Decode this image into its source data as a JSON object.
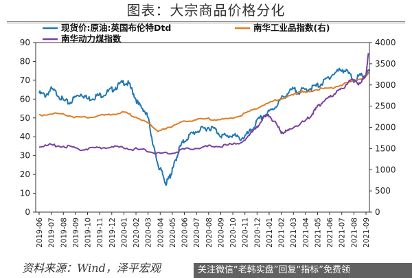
{
  "page": {
    "title": "图表：大宗商品价格分化",
    "source": "资料来源：Wind，泽平宏观",
    "watermark": "关注微信“老韩实盘”回复“指标”免费领"
  },
  "chart_data": {
    "type": "line",
    "xlabels": [
      "2019-06",
      "2019-07",
      "2019-08",
      "2019-09",
      "2019-10",
      "2019-11",
      "2019-12",
      "2020-01",
      "2020-02",
      "2020-03",
      "2020-04",
      "2020-05",
      "2020-06",
      "2020-07",
      "2020-08",
      "2020-09",
      "2020-10",
      "2020-11",
      "2020-12",
      "2021-01",
      "2021-02",
      "2021-03",
      "2021-04",
      "2021-05",
      "2021-06",
      "2021-07",
      "2021-08",
      "2021-09"
    ],
    "left_axis": {
      "min": 0,
      "max": 90,
      "ticks": [
        0,
        10,
        20,
        30,
        40,
        50,
        60,
        70,
        80,
        90
      ]
    },
    "right_axis": {
      "min": 0,
      "max": 4000,
      "ticks": [
        0,
        500,
        1000,
        1500,
        2000,
        2500,
        3000,
        3500,
        4000
      ]
    },
    "legend_placement": "top",
    "series": [
      {
        "name": "现货价:原油:英国布伦特Dtd",
        "axis": "left",
        "color": "#1f77b4",
        "values": [
          [
            0,
            63
          ],
          [
            0.5,
            62
          ],
          [
            1,
            65
          ],
          [
            1.5,
            63
          ],
          [
            2,
            59
          ],
          [
            2.5,
            58
          ],
          [
            3,
            61
          ],
          [
            3.5,
            63
          ],
          [
            4,
            60
          ],
          [
            4.5,
            61
          ],
          [
            5,
            62
          ],
          [
            5.5,
            63
          ],
          [
            6,
            65
          ],
          [
            6.5,
            67
          ],
          [
            7,
            69
          ],
          [
            7.4,
            68
          ],
          [
            7.8,
            63
          ],
          [
            8.2,
            57
          ],
          [
            8.6,
            55
          ],
          [
            9,
            50
          ],
          [
            9.3,
            40
          ],
          [
            9.6,
            30
          ],
          [
            9.9,
            24
          ],
          [
            10.2,
            20
          ],
          [
            10.5,
            15
          ],
          [
            10.8,
            19
          ],
          [
            11,
            22
          ],
          [
            11.3,
            28
          ],
          [
            11.6,
            34
          ],
          [
            12,
            38
          ],
          [
            12.5,
            41
          ],
          [
            13,
            43
          ],
          [
            13.5,
            44
          ],
          [
            14,
            45
          ],
          [
            14.5,
            44
          ],
          [
            15,
            41
          ],
          [
            15.5,
            40
          ],
          [
            16,
            41
          ],
          [
            16.5,
            39
          ],
          [
            17,
            40
          ],
          [
            17.5,
            43
          ],
          [
            18,
            48
          ],
          [
            18.5,
            51
          ],
          [
            19,
            53
          ],
          [
            19.5,
            56
          ],
          [
            20,
            60
          ],
          [
            20.5,
            63
          ],
          [
            21,
            65
          ],
          [
            21.5,
            64
          ],
          [
            22,
            65
          ],
          [
            22.5,
            66
          ],
          [
            23,
            67
          ],
          [
            23.5,
            69
          ],
          [
            24,
            72
          ],
          [
            24.5,
            74
          ],
          [
            25,
            76
          ],
          [
            25.5,
            74
          ],
          [
            26,
            70
          ],
          [
            26.5,
            72
          ],
          [
            27,
            73
          ],
          [
            27.3,
            75
          ]
        ]
      },
      {
        "name": "南华工业品指数(右)",
        "axis": "right",
        "color": "#e07b22",
        "values": [
          [
            0,
            2280
          ],
          [
            1,
            2330
          ],
          [
            2,
            2310
          ],
          [
            3,
            2240
          ],
          [
            4,
            2230
          ],
          [
            5,
            2270
          ],
          [
            6,
            2310
          ],
          [
            7,
            2350
          ],
          [
            8,
            2250
          ],
          [
            9,
            2090
          ],
          [
            9.8,
            1920
          ],
          [
            10.5,
            1960
          ],
          [
            11.3,
            2080
          ],
          [
            12,
            2130
          ],
          [
            13,
            2180
          ],
          [
            14,
            2200
          ],
          [
            15,
            2180
          ],
          [
            16,
            2220
          ],
          [
            17,
            2320
          ],
          [
            18,
            2460
          ],
          [
            19,
            2580
          ],
          [
            20,
            2680
          ],
          [
            21,
            2760
          ],
          [
            21.5,
            2850
          ],
          [
            22,
            2820
          ],
          [
            23,
            2900
          ],
          [
            24,
            2920
          ],
          [
            25,
            3000
          ],
          [
            26,
            3100
          ],
          [
            27,
            3200
          ],
          [
            27.3,
            3300
          ]
        ]
      },
      {
        "name": "南华动力煤指数",
        "axis": "right",
        "color": "#7b3fa0",
        "values": [
          [
            0,
            1540
          ],
          [
            1,
            1580
          ],
          [
            2,
            1560
          ],
          [
            3,
            1500
          ],
          [
            4,
            1490
          ],
          [
            5,
            1520
          ],
          [
            6,
            1530
          ],
          [
            7,
            1520
          ],
          [
            8,
            1480
          ],
          [
            9,
            1440
          ],
          [
            10,
            1380
          ],
          [
            11,
            1400
          ],
          [
            12,
            1480
          ],
          [
            13,
            1520
          ],
          [
            14,
            1540
          ],
          [
            15,
            1560
          ],
          [
            16,
            1590
          ],
          [
            17,
            1700
          ],
          [
            18,
            2000
          ],
          [
            18.5,
            2230
          ],
          [
            19,
            2280
          ],
          [
            19.5,
            2100
          ],
          [
            20,
            1890
          ],
          [
            20.5,
            1900
          ],
          [
            21,
            2010
          ],
          [
            22,
            2150
          ],
          [
            22.5,
            2300
          ],
          [
            23,
            2480
          ],
          [
            23.5,
            2620
          ],
          [
            24,
            2700
          ],
          [
            24.5,
            2820
          ],
          [
            25,
            2900
          ],
          [
            25.5,
            3050
          ],
          [
            26,
            3150
          ],
          [
            26.5,
            3000
          ],
          [
            27,
            3250
          ],
          [
            27.2,
            3750
          ]
        ]
      }
    ]
  }
}
